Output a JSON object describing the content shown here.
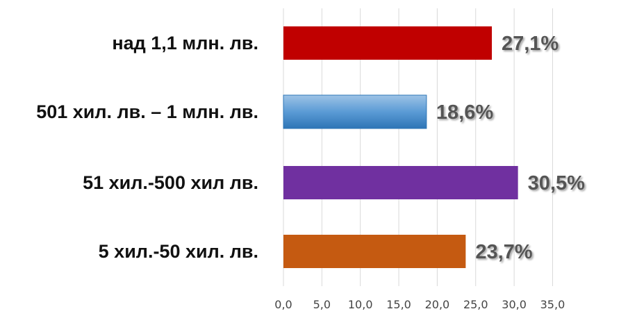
{
  "chart_data": {
    "type": "bar",
    "orientation": "horizontal",
    "categories": [
      "над 1,1 млн. лв.",
      "501 хил. лв. – 1 млн. лв.",
      "51 хил.-500 хил лв.",
      "5 хил.-50 хил. лв."
    ],
    "values": [
      27.1,
      18.6,
      30.5,
      23.7
    ],
    "value_labels": [
      "27,1%",
      "18,6%",
      "30,5%",
      "23,7%"
    ],
    "bar_colors": [
      "#c00000",
      "#5b9bd5",
      "#7030a0",
      "#c55a11"
    ],
    "xticks": [
      "0,0",
      "5,0",
      "10,0",
      "15,0",
      "20,0",
      "25,0",
      "30,0",
      "35,0"
    ],
    "xlim": [
      0,
      35
    ],
    "grid": true,
    "legend": "none",
    "title": "",
    "xlabel": "",
    "ylabel": ""
  }
}
